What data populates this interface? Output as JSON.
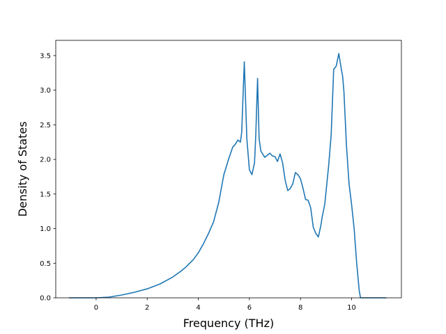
{
  "chart_data": {
    "type": "line",
    "title": "",
    "xlabel": "Frequency (THz)",
    "ylabel": "Density of States",
    "xlim": [
      -1.58,
      11.95
    ],
    "ylim": [
      0.0,
      3.72
    ],
    "grid": false,
    "legend": "none",
    "xticks": [
      0,
      2,
      4,
      6,
      8,
      10
    ],
    "yticks": [
      0.0,
      0.5,
      1.0,
      1.5,
      2.0,
      2.5,
      3.0,
      3.5
    ],
    "xtick_labels": [
      "0",
      "2",
      "4",
      "6",
      "8",
      "10"
    ],
    "ytick_labels": [
      "0.0",
      "0.5",
      "1.0",
      "1.5",
      "2.0",
      "2.5",
      "3.0",
      "3.5"
    ],
    "series": [
      {
        "color": "#1f77b4",
        "x": [
          -1.05,
          0.0,
          0.5,
          1.0,
          1.5,
          2.0,
          2.5,
          3.0,
          3.3,
          3.5,
          3.8,
          4.0,
          4.2,
          4.4,
          4.6,
          4.8,
          5.0,
          5.2,
          5.35,
          5.45,
          5.55,
          5.65,
          5.7,
          5.8,
          5.9,
          6.0,
          6.1,
          6.2,
          6.25,
          6.32,
          6.38,
          6.45,
          6.6,
          6.8,
          6.9,
          7.0,
          7.1,
          7.2,
          7.3,
          7.4,
          7.5,
          7.6,
          7.7,
          7.8,
          7.9,
          8.0,
          8.1,
          8.2,
          8.3,
          8.4,
          8.5,
          8.6,
          8.7,
          8.8,
          8.85,
          8.95,
          9.1,
          9.2,
          9.3,
          9.4,
          9.5,
          9.6,
          9.65,
          9.7,
          9.8,
          9.9,
          10.0,
          10.1,
          10.2,
          10.3,
          10.35,
          10.4,
          10.6,
          11.35
        ],
        "y": [
          0.0,
          0.0,
          0.01,
          0.04,
          0.08,
          0.13,
          0.2,
          0.3,
          0.38,
          0.44,
          0.55,
          0.65,
          0.78,
          0.93,
          1.1,
          1.38,
          1.78,
          2.02,
          2.18,
          2.22,
          2.28,
          2.25,
          2.4,
          3.41,
          2.3,
          1.85,
          1.78,
          1.95,
          2.35,
          3.17,
          2.3,
          2.12,
          2.03,
          2.09,
          2.05,
          2.04,
          1.97,
          2.08,
          1.95,
          1.7,
          1.55,
          1.58,
          1.65,
          1.81,
          1.78,
          1.72,
          1.58,
          1.42,
          1.41,
          1.3,
          1.02,
          0.93,
          0.88,
          1.05,
          1.17,
          1.35,
          1.9,
          2.35,
          3.3,
          3.35,
          3.53,
          3.3,
          3.2,
          2.98,
          2.2,
          1.65,
          1.35,
          1.0,
          0.5,
          0.1,
          0.0,
          0.0,
          0.0,
          0.0
        ]
      }
    ]
  }
}
